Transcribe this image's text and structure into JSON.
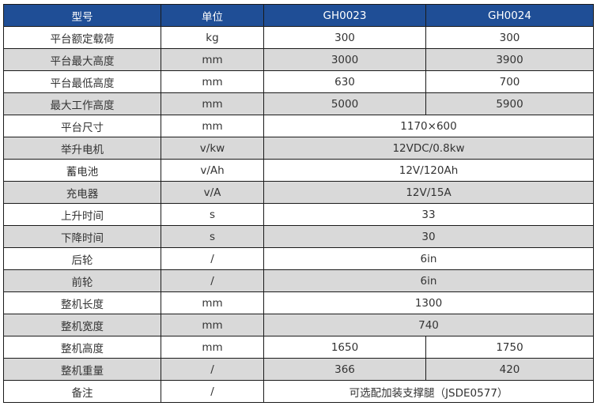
{
  "header": [
    "型号",
    "单位",
    "GH0023",
    "GH0024"
  ],
  "rows": [
    {
      "name": "平台额定载荷",
      "unit": "kg",
      "values": [
        "300",
        "300"
      ]
    },
    {
      "name": "平台最大高度",
      "unit": "mm",
      "values": [
        "3000",
        "3900"
      ]
    },
    {
      "name": "平台最低高度",
      "unit": "mm",
      "values": [
        "630",
        "700"
      ]
    },
    {
      "name": "最大工作高度",
      "unit": "mm",
      "values": [
        "5000",
        "5900"
      ]
    },
    {
      "name": "平台尺寸",
      "unit": "mm",
      "values": [
        "1170×600"
      ]
    },
    {
      "name": "举升电机",
      "unit": "v/kw",
      "values": [
        "12VDC/0.8kw"
      ]
    },
    {
      "name": "蓄电池",
      "unit": "v/Ah",
      "values": [
        "12V/120Ah"
      ]
    },
    {
      "name": "充电器",
      "unit": "v/A",
      "values": [
        "12V/15A"
      ]
    },
    {
      "name": "上升时间",
      "unit": "s",
      "values": [
        "33"
      ]
    },
    {
      "name": "下降时间",
      "unit": "s",
      "values": [
        "30"
      ]
    },
    {
      "name": "后轮",
      "unit": "/",
      "values": [
        "6in"
      ]
    },
    {
      "name": "前轮",
      "unit": "/",
      "values": [
        "6in"
      ]
    },
    {
      "name": "整机长度",
      "unit": "mm",
      "values": [
        "1300"
      ]
    },
    {
      "name": "整机宽度",
      "unit": "mm",
      "values": [
        "740"
      ]
    },
    {
      "name": "整机高度",
      "unit": "mm",
      "values": [
        "1650",
        "1750"
      ]
    },
    {
      "name": "整机重量",
      "unit": "/",
      "values": [
        "366",
        "420"
      ]
    },
    {
      "name": "备注",
      "unit": "/",
      "values": [
        "可选配加装支撑腿（JSDE0577）"
      ]
    }
  ],
  "colors": {
    "header_bg": "#1f4e96",
    "alt_row_bg": "#d9d9d9"
  }
}
